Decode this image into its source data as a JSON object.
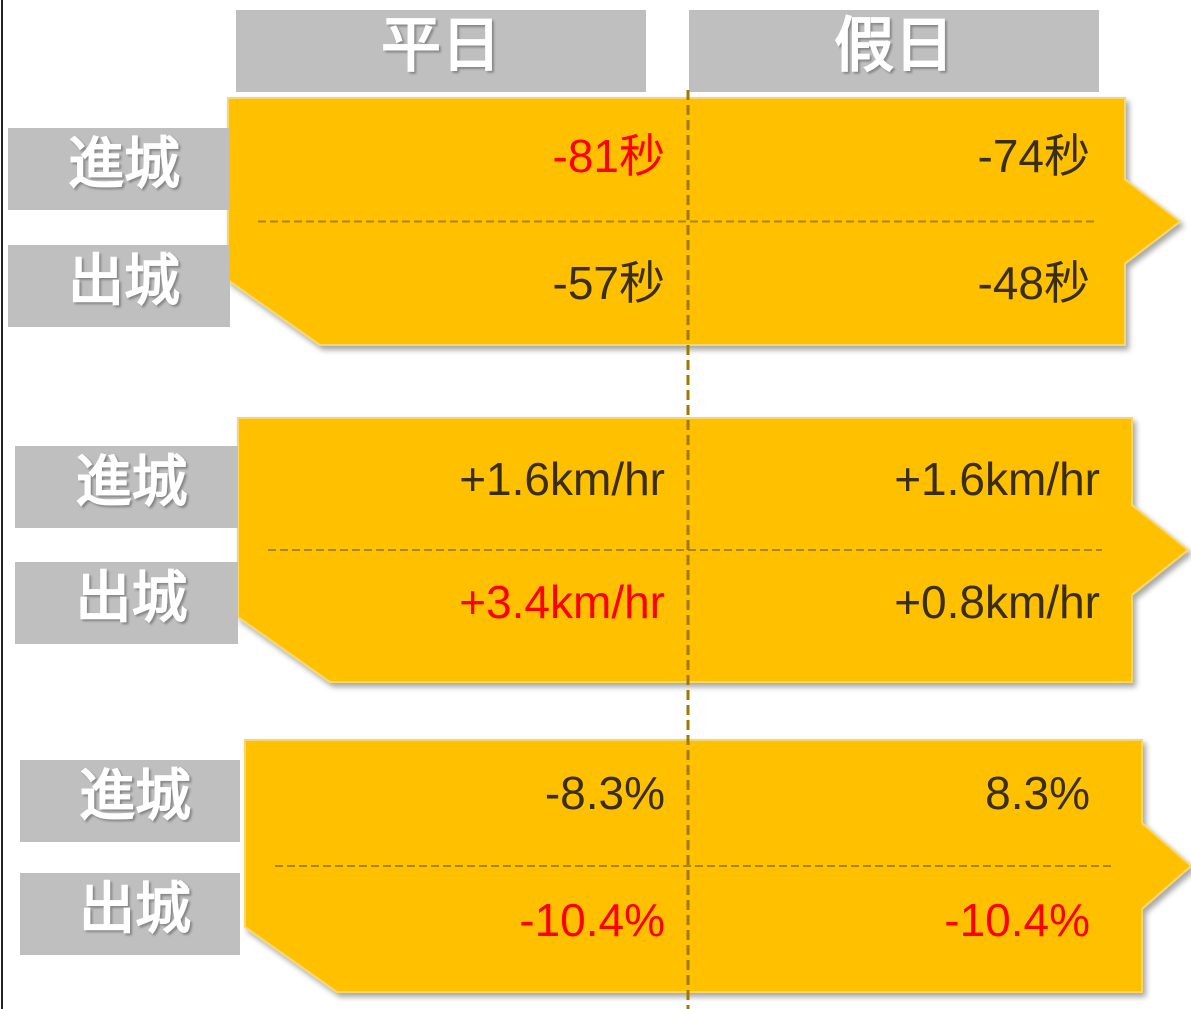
{
  "header": {
    "columns": [
      "平日",
      "假日"
    ]
  },
  "panels": [
    {
      "rows": [
        {
          "label": "進城",
          "cells": [
            {
              "text": "-81秒",
              "highlight": true
            },
            {
              "text": "-74秒",
              "highlight": false
            }
          ]
        },
        {
          "label": "出城",
          "cells": [
            {
              "text": "-57秒",
              "highlight": false
            },
            {
              "text": "-48秒",
              "highlight": false
            }
          ]
        }
      ]
    },
    {
      "rows": [
        {
          "label": "進城",
          "cells": [
            {
              "text": "+1.6km/hr",
              "highlight": false
            },
            {
              "text": "+1.6km/hr",
              "highlight": false
            }
          ]
        },
        {
          "label": "出城",
          "cells": [
            {
              "text": "+3.4km/hr",
              "highlight": true
            },
            {
              "text": "+0.8km/hr",
              "highlight": false
            }
          ]
        }
      ]
    },
    {
      "rows": [
        {
          "label": "進城",
          "cells": [
            {
              "text": "-8.3%",
              "highlight": false
            },
            {
              "text": "8.3%",
              "highlight": false
            }
          ]
        },
        {
          "label": "出城",
          "cells": [
            {
              "text": "-10.4%",
              "highlight": true
            },
            {
              "text": "-10.4%",
              "highlight": true
            }
          ]
        }
      ]
    }
  ]
}
